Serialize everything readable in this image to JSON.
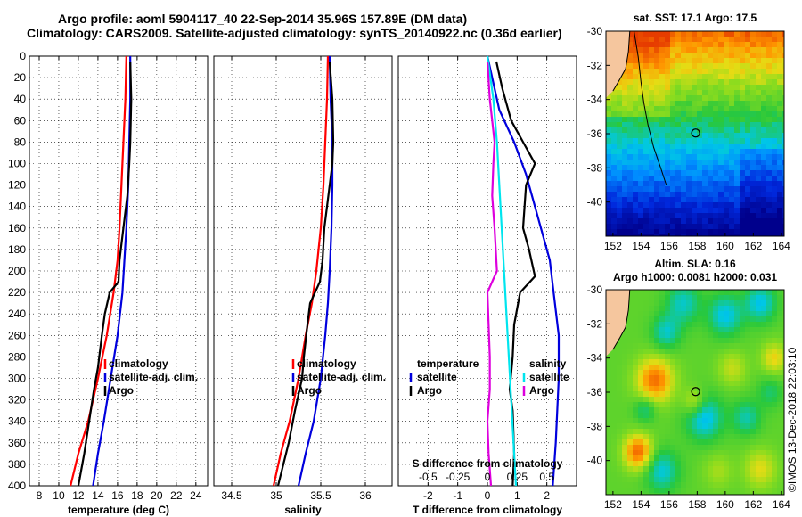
{
  "titles": {
    "line1": "Argo profile: aoml 5904117_40 22-Sep-2014 35.96S 157.89E (DM data)",
    "line2": "Climatology: CARS2009. Satellite-adjusted climatology: synTS_20140922.nc (0.36d earlier)"
  },
  "colors": {
    "climatology": "#ff0000",
    "satellite": "#0000dd",
    "argo": "#000000",
    "t_diff_satellite": "#00e5ee",
    "s_diff_argo": "#dd00dd"
  },
  "chart_data": [
    {
      "type": "line",
      "panel": "temperature",
      "xlabel": "temperature (deg C)",
      "ylabel": "",
      "xlim": [
        7,
        25.2
      ],
      "ylim": [
        400,
        0
      ],
      "xticks": [
        8,
        10,
        12,
        14,
        16,
        18,
        20,
        22,
        24
      ],
      "yticks": [
        0,
        20,
        40,
        60,
        80,
        100,
        120,
        140,
        160,
        180,
        200,
        220,
        240,
        260,
        280,
        300,
        320,
        340,
        360,
        380,
        400
      ],
      "legend": [
        "climatology",
        "satellite-adj. clim.",
        "Argo"
      ],
      "series": [
        {
          "name": "climatology",
          "points": [
            [
              16.9,
              0
            ],
            [
              16.8,
              40
            ],
            [
              16.6,
              80
            ],
            [
              16.4,
              120
            ],
            [
              16.2,
              160
            ],
            [
              16.0,
              190
            ],
            [
              15.6,
              220
            ],
            [
              14.9,
              260
            ],
            [
              14.0,
              300
            ],
            [
              13.0,
              340
            ],
            [
              12.0,
              370
            ],
            [
              11.2,
              400
            ]
          ]
        },
        {
          "name": "satellite-adj. clim.",
          "points": [
            [
              17.3,
              0
            ],
            [
              17.3,
              40
            ],
            [
              17.2,
              80
            ],
            [
              17.1,
              120
            ],
            [
              16.9,
              160
            ],
            [
              16.7,
              190
            ],
            [
              16.5,
              220
            ],
            [
              16.0,
              260
            ],
            [
              15.3,
              300
            ],
            [
              14.6,
              340
            ],
            [
              14.0,
              370
            ],
            [
              13.5,
              400
            ]
          ]
        },
        {
          "name": "Argo",
          "points": [
            [
              17.3,
              5
            ],
            [
              17.4,
              40
            ],
            [
              17.3,
              80
            ],
            [
              17.2,
              100
            ],
            [
              17.0,
              130
            ],
            [
              16.6,
              160
            ],
            [
              16.2,
              190
            ],
            [
              16.1,
              210
            ],
            [
              15.2,
              220
            ],
            [
              14.7,
              240
            ],
            [
              14.4,
              260
            ],
            [
              14.0,
              290
            ],
            [
              13.6,
              310
            ],
            [
              13.1,
              340
            ],
            [
              12.6,
              370
            ],
            [
              12.0,
              400
            ]
          ]
        }
      ]
    },
    {
      "type": "line",
      "panel": "salinity",
      "xlabel": "salinity",
      "xlim": [
        34.3,
        36.3
      ],
      "ylim": [
        400,
        0
      ],
      "xticks": [
        34.5,
        35,
        35.5,
        36
      ],
      "xticklabels": [
        "34.5",
        "35",
        "35.5",
        "36"
      ],
      "legend": [
        "climatology",
        "satellite-adj. clim.",
        "Argo"
      ],
      "series": [
        {
          "name": "climatology",
          "points": [
            [
              35.58,
              0
            ],
            [
              35.57,
              40
            ],
            [
              35.55,
              80
            ],
            [
              35.53,
              120
            ],
            [
              35.5,
              160
            ],
            [
              35.45,
              200
            ],
            [
              35.4,
              230
            ],
            [
              35.33,
              260
            ],
            [
              35.25,
              300
            ],
            [
              35.15,
              340
            ],
            [
              35.05,
              370
            ],
            [
              34.97,
              400
            ]
          ]
        },
        {
          "name": "satellite-adj. clim.",
          "points": [
            [
              35.6,
              0
            ],
            [
              35.61,
              40
            ],
            [
              35.63,
              80
            ],
            [
              35.63,
              120
            ],
            [
              35.62,
              160
            ],
            [
              35.6,
              200
            ],
            [
              35.58,
              230
            ],
            [
              35.55,
              260
            ],
            [
              35.5,
              300
            ],
            [
              35.42,
              340
            ],
            [
              35.33,
              370
            ],
            [
              35.25,
              400
            ]
          ]
        },
        {
          "name": "Argo",
          "points": [
            [
              35.6,
              5
            ],
            [
              35.63,
              40
            ],
            [
              35.64,
              80
            ],
            [
              35.63,
              100
            ],
            [
              35.6,
              120
            ],
            [
              35.57,
              140
            ],
            [
              35.54,
              160
            ],
            [
              35.52,
              190
            ],
            [
              35.49,
              210
            ],
            [
              35.38,
              230
            ],
            [
              35.35,
              250
            ],
            [
              35.31,
              280
            ],
            [
              35.29,
              300
            ],
            [
              35.21,
              330
            ],
            [
              35.14,
              360
            ],
            [
              35.08,
              380
            ],
            [
              35.02,
              400
            ]
          ]
        }
      ]
    },
    {
      "type": "line",
      "panel": "difference",
      "xlabel": "T difference from climatology",
      "xlabel_top": "S difference from climatology",
      "xlim": [
        -3,
        3
      ],
      "ylim": [
        400,
        0
      ],
      "xticks": [
        -2,
        -1,
        0,
        1,
        2
      ],
      "xticks_s": [
        -0.5,
        -0.25,
        0,
        0.25,
        0.5
      ],
      "xticklabels_s": [
        "-0.5",
        "-0.25",
        "0",
        "0.25",
        "0.5"
      ],
      "legend_left": {
        "title": "temperature",
        "items": [
          "satellite",
          "Argo"
        ]
      },
      "legend_right": {
        "title": "salinity",
        "items": [
          "satellite",
          "Argo"
        ]
      },
      "series": [
        {
          "name": "T satellite",
          "quantity": "temperature",
          "points": [
            [
              0,
              0
            ],
            [
              0.4,
              50
            ],
            [
              0.9,
              80
            ],
            [
              1.3,
              110
            ],
            [
              1.7,
              150
            ],
            [
              2.1,
              190
            ],
            [
              2.4,
              260
            ],
            [
              2.4,
              300
            ],
            [
              2.3,
              360
            ],
            [
              2.2,
              400
            ]
          ]
        },
        {
          "name": "T Argo",
          "quantity": "temperature",
          "points": [
            [
              0.3,
              5
            ],
            [
              0.5,
              30
            ],
            [
              0.8,
              60
            ],
            [
              1.2,
              80
            ],
            [
              1.6,
              100
            ],
            [
              1.3,
              120
            ],
            [
              1.2,
              160
            ],
            [
              1.4,
              180
            ],
            [
              1.6,
              205
            ],
            [
              1.1,
              220
            ],
            [
              0.9,
              250
            ],
            [
              0.85,
              280
            ],
            [
              0.75,
              310
            ],
            [
              0.85,
              330
            ],
            [
              0.9,
              370
            ],
            [
              0.85,
              400
            ]
          ]
        },
        {
          "name": "S satellite",
          "quantity": "salinity",
          "points": [
            [
              0.0,
              0
            ],
            [
              0.05,
              40
            ],
            [
              0.08,
              80
            ],
            [
              0.1,
              120
            ],
            [
              0.12,
              160
            ],
            [
              0.14,
              200
            ],
            [
              0.16,
              240
            ],
            [
              0.18,
              280
            ],
            [
              0.2,
              320
            ],
            [
              0.22,
              360
            ],
            [
              0.24,
              400
            ]
          ]
        },
        {
          "name": "S Argo",
          "quantity": "salinity",
          "points": [
            [
              0.0,
              5
            ],
            [
              0.02,
              40
            ],
            [
              0.06,
              80
            ],
            [
              0.05,
              100
            ],
            [
              0.04,
              130
            ],
            [
              0.06,
              160
            ],
            [
              0.08,
              200
            ],
            [
              0.0,
              220
            ],
            [
              0.01,
              250
            ],
            [
              0.02,
              280
            ],
            [
              0.02,
              310
            ],
            [
              0.0,
              340
            ],
            [
              0.01,
              370
            ],
            [
              0.03,
              400
            ]
          ]
        }
      ]
    },
    {
      "type": "heatmap",
      "panel": "sst_map",
      "title": "sat. SST: 17.1  Argo: 17.5",
      "xlim": [
        151.5,
        164.2
      ],
      "ylim": [
        -42,
        -30
      ],
      "xticks": [
        152,
        154,
        156,
        158,
        160,
        162,
        164
      ],
      "yticks": [
        -30,
        -32,
        -34,
        -36,
        -38,
        -40
      ],
      "argo_position": {
        "lon": 157.89,
        "lat": -35.96
      }
    },
    {
      "type": "heatmap",
      "panel": "sla_map",
      "title": "Altim. SLA: 0.16",
      "subtitle": "Argo h1000: 0.0081  h2000: 0.031",
      "xlim": [
        151.5,
        164.2
      ],
      "ylim": [
        -42,
        -30
      ],
      "xticks": [
        152,
        154,
        156,
        158,
        160,
        162,
        164
      ],
      "yticks": [
        -30,
        -32,
        -34,
        -36,
        -38,
        -40
      ],
      "argo_position": {
        "lon": 157.89,
        "lat": -35.96
      }
    }
  ],
  "credit": "©IMOS 13-Dec-2018 22:03:10"
}
